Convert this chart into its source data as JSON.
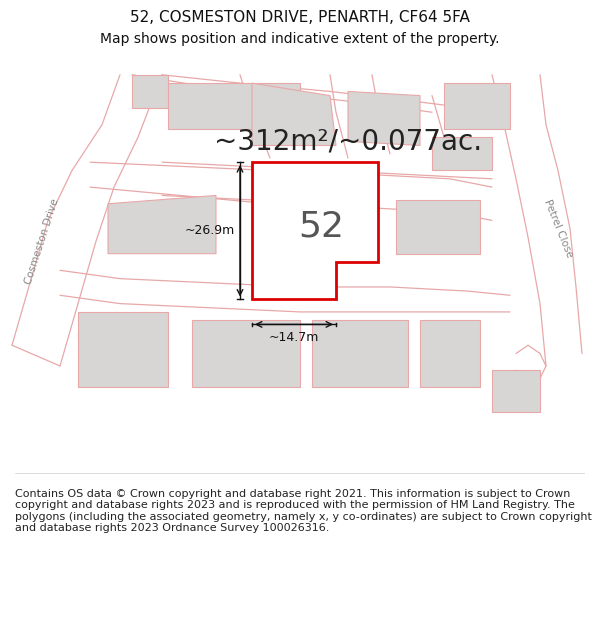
{
  "title_line1": "52, COSMESTON DRIVE, PENARTH, CF64 5FA",
  "title_line2": "Map shows position and indicative extent of the property.",
  "area_text": "~312m²/~0.077ac.",
  "number_label": "52",
  "dim_vertical": "~26.9m",
  "dim_horizontal": "~14.7m",
  "road_left_label": "Cosmeston Drive",
  "road_right_label": "Petrel Close",
  "footer_text": "Contains OS data © Crown copyright and database right 2021. This information is subject to Crown copyright and database rights 2023 and is reproduced with the permission of HM Land Registry. The polygons (including the associated geometry, namely x, y co-ordinates) are subject to Crown copyright and database rights 2023 Ordnance Survey 100026316.",
  "bg_color": "#ffffff",
  "map_bg": "#ffffff",
  "plot_color": "#ffffff",
  "plot_edge_color": "#dd0000",
  "building_fill": "#d8d5d5",
  "building_edge": "#e8a8a8",
  "road_color": "#e8a8a8",
  "parcel_fill": "none",
  "parcel_edge": "#e8a8a8",
  "text_color": "#333333",
  "title_fontsize": 11,
  "subtitle_fontsize": 10,
  "area_fontsize": 20,
  "number_fontsize": 26,
  "footer_fontsize": 8.0,
  "dim_fontsize": 9
}
